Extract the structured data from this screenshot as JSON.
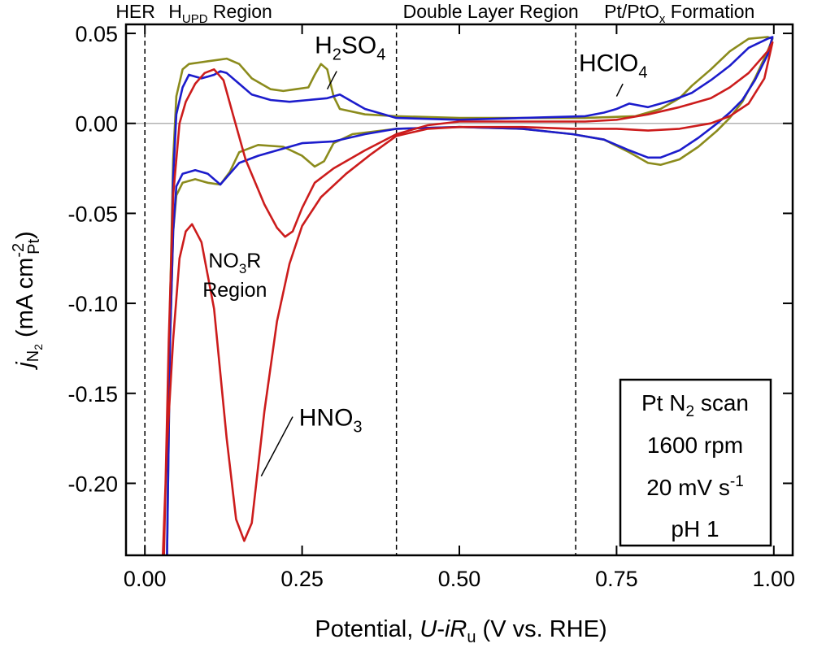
{
  "chart_data": {
    "type": "line",
    "xlabel": {
      "pre": "Potential, ",
      "U": "U",
      "dash": "-",
      "iR": "iR",
      "sub": "u",
      "post": " (V vs. RHE)"
    },
    "ylabel": {
      "j": "j",
      "sub": "N",
      "subsub": "2",
      "mid": " (mA cm",
      "sup": "-2",
      "sub2": "Pt",
      "post": ")"
    },
    "xlim": [
      -0.03,
      1.03
    ],
    "ylim": [
      -0.24,
      0.055
    ],
    "x_ticks": [
      {
        "v": 0.0,
        "label": "0.00"
      },
      {
        "v": 0.25,
        "label": "0.25"
      },
      {
        "v": 0.5,
        "label": "0.50"
      },
      {
        "v": 0.75,
        "label": "0.75"
      },
      {
        "v": 1.0,
        "label": "1.00"
      }
    ],
    "y_ticks": [
      {
        "v": 0.05,
        "label": "0.05"
      },
      {
        "v": 0.0,
        "label": "0.00"
      },
      {
        "v": -0.05,
        "label": "-0.05"
      },
      {
        "v": -0.1,
        "label": "-0.10"
      },
      {
        "v": -0.15,
        "label": "-0.15"
      },
      {
        "v": -0.2,
        "label": "-0.20"
      }
    ],
    "zero_line": 0.0,
    "region_dividers": [
      0.0,
      0.4,
      0.685
    ],
    "region_labels": [
      {
        "text": "HER",
        "x": -0.015
      },
      {
        "main": "H",
        "sub": "UPD",
        "rest": " Region",
        "x": 0.12
      },
      {
        "text": "Double Layer Region",
        "x": 0.55
      },
      {
        "main": "Pt/PtO",
        "sub": "x",
        "rest": " Formation",
        "x": 0.85
      }
    ],
    "series": [
      {
        "name": "H2SO4",
        "label_main": "H",
        "label_sub": "2",
        "label_mid": "SO",
        "label_sub2": "4",
        "color": "#8b8b1c",
        "label_pos": [
          0.27,
          0.039
        ],
        "leader": [
          [
            0.305,
            0.029
          ],
          [
            0.29,
            0.019
          ]
        ],
        "points": [
          [
            0.035,
            -0.245
          ],
          [
            0.04,
            -0.12
          ],
          [
            0.045,
            -0.06
          ],
          [
            0.05,
            -0.04
          ],
          [
            0.06,
            -0.033
          ],
          [
            0.08,
            -0.031
          ],
          [
            0.1,
            -0.033
          ],
          [
            0.12,
            -0.034
          ],
          [
            0.135,
            -0.027
          ],
          [
            0.15,
            -0.016
          ],
          [
            0.18,
            -0.012
          ],
          [
            0.22,
            -0.013
          ],
          [
            0.25,
            -0.018
          ],
          [
            0.27,
            -0.024
          ],
          [
            0.285,
            -0.021
          ],
          [
            0.3,
            -0.011
          ],
          [
            0.33,
            -0.006
          ],
          [
            0.4,
            -0.003
          ],
          [
            0.5,
            -0.002
          ],
          [
            0.6,
            -0.003
          ],
          [
            0.68,
            -0.006
          ],
          [
            0.73,
            -0.009
          ],
          [
            0.77,
            -0.016
          ],
          [
            0.8,
            -0.022
          ],
          [
            0.82,
            -0.023
          ],
          [
            0.85,
            -0.02
          ],
          [
            0.88,
            -0.013
          ],
          [
            0.91,
            -0.004
          ],
          [
            0.93,
            0.003
          ],
          [
            0.95,
            0.012
          ],
          [
            0.97,
            0.025
          ],
          [
            0.99,
            0.04
          ],
          [
            0.998,
            0.047
          ],
          [
            0.99,
            0.048
          ],
          [
            0.96,
            0.047
          ],
          [
            0.93,
            0.04
          ],
          [
            0.9,
            0.03
          ],
          [
            0.87,
            0.021
          ],
          [
            0.85,
            0.014
          ],
          [
            0.82,
            0.008
          ],
          [
            0.78,
            0.004
          ],
          [
            0.7,
            0.003
          ],
          [
            0.6,
            0.003
          ],
          [
            0.5,
            0.003
          ],
          [
            0.4,
            0.004
          ],
          [
            0.35,
            0.005
          ],
          [
            0.31,
            0.008
          ],
          [
            0.3,
            0.015
          ],
          [
            0.29,
            0.03
          ],
          [
            0.28,
            0.033
          ],
          [
            0.27,
            0.027
          ],
          [
            0.26,
            0.02
          ],
          [
            0.24,
            0.019
          ],
          [
            0.22,
            0.018
          ],
          [
            0.2,
            0.019
          ],
          [
            0.17,
            0.025
          ],
          [
            0.15,
            0.033
          ],
          [
            0.13,
            0.036
          ],
          [
            0.11,
            0.035
          ],
          [
            0.09,
            0.034
          ],
          [
            0.07,
            0.033
          ],
          [
            0.06,
            0.03
          ],
          [
            0.05,
            0.015
          ],
          [
            0.045,
            -0.02
          ],
          [
            0.04,
            -0.1
          ],
          [
            0.035,
            -0.245
          ]
        ]
      },
      {
        "name": "HClO4",
        "label_main": "HClO",
        "label_sub": "4",
        "color": "#1c1ccc",
        "label_pos": [
          0.69,
          0.029
        ],
        "leader": [
          [
            0.76,
            0.022
          ],
          [
            0.75,
            0.015
          ]
        ],
        "points": [
          [
            0.035,
            -0.245
          ],
          [
            0.04,
            -0.12
          ],
          [
            0.045,
            -0.06
          ],
          [
            0.05,
            -0.035
          ],
          [
            0.06,
            -0.028
          ],
          [
            0.08,
            -0.026
          ],
          [
            0.1,
            -0.028
          ],
          [
            0.12,
            -0.034
          ],
          [
            0.135,
            -0.028
          ],
          [
            0.15,
            -0.022
          ],
          [
            0.18,
            -0.018
          ],
          [
            0.22,
            -0.014
          ],
          [
            0.25,
            -0.011
          ],
          [
            0.3,
            -0.01
          ],
          [
            0.35,
            -0.006
          ],
          [
            0.4,
            -0.003
          ],
          [
            0.5,
            -0.002
          ],
          [
            0.6,
            -0.003
          ],
          [
            0.68,
            -0.006
          ],
          [
            0.73,
            -0.009
          ],
          [
            0.77,
            -0.015
          ],
          [
            0.8,
            -0.019
          ],
          [
            0.82,
            -0.019
          ],
          [
            0.85,
            -0.015
          ],
          [
            0.88,
            -0.008
          ],
          [
            0.91,
            0.0
          ],
          [
            0.93,
            0.006
          ],
          [
            0.95,
            0.013
          ],
          [
            0.97,
            0.024
          ],
          [
            0.99,
            0.038
          ],
          [
            0.998,
            0.048
          ],
          [
            0.99,
            0.047
          ],
          [
            0.96,
            0.042
          ],
          [
            0.93,
            0.032
          ],
          [
            0.9,
            0.024
          ],
          [
            0.87,
            0.017
          ],
          [
            0.84,
            0.013
          ],
          [
            0.8,
            0.009
          ],
          [
            0.77,
            0.011
          ],
          [
            0.75,
            0.008
          ],
          [
            0.73,
            0.006
          ],
          [
            0.7,
            0.004
          ],
          [
            0.6,
            0.003
          ],
          [
            0.5,
            0.002
          ],
          [
            0.4,
            0.003
          ],
          [
            0.35,
            0.008
          ],
          [
            0.32,
            0.014
          ],
          [
            0.31,
            0.016
          ],
          [
            0.29,
            0.014
          ],
          [
            0.26,
            0.013
          ],
          [
            0.23,
            0.012
          ],
          [
            0.2,
            0.013
          ],
          [
            0.17,
            0.016
          ],
          [
            0.15,
            0.022
          ],
          [
            0.13,
            0.028
          ],
          [
            0.12,
            0.029
          ],
          [
            0.11,
            0.027
          ],
          [
            0.1,
            0.026
          ],
          [
            0.09,
            0.025
          ],
          [
            0.07,
            0.027
          ],
          [
            0.06,
            0.02
          ],
          [
            0.05,
            0.005
          ],
          [
            0.045,
            -0.03
          ],
          [
            0.04,
            -0.11
          ],
          [
            0.035,
            -0.245
          ]
        ]
      },
      {
        "name": "HNO3",
        "label_main": "HNO",
        "label_sub": "3",
        "color": "#cc1c1c",
        "label_pos": [
          0.245,
          -0.168
        ],
        "leader": [
          [
            0.235,
            -0.163
          ],
          [
            0.185,
            -0.196
          ]
        ],
        "points": [
          [
            0.028,
            -0.245
          ],
          [
            0.035,
            -0.18
          ],
          [
            0.045,
            -0.12
          ],
          [
            0.055,
            -0.075
          ],
          [
            0.065,
            -0.06
          ],
          [
            0.075,
            -0.056
          ],
          [
            0.09,
            -0.066
          ],
          [
            0.11,
            -0.103
          ],
          [
            0.13,
            -0.175
          ],
          [
            0.145,
            -0.22
          ],
          [
            0.158,
            -0.232
          ],
          [
            0.17,
            -0.222
          ],
          [
            0.19,
            -0.16
          ],
          [
            0.21,
            -0.11
          ],
          [
            0.23,
            -0.078
          ],
          [
            0.25,
            -0.057
          ],
          [
            0.28,
            -0.041
          ],
          [
            0.32,
            -0.028
          ],
          [
            0.36,
            -0.017
          ],
          [
            0.4,
            -0.007
          ],
          [
            0.45,
            -0.003
          ],
          [
            0.5,
            -0.002
          ],
          [
            0.6,
            -0.002
          ],
          [
            0.68,
            -0.003
          ],
          [
            0.75,
            -0.003
          ],
          [
            0.8,
            -0.004
          ],
          [
            0.85,
            -0.003
          ],
          [
            0.9,
            0.0
          ],
          [
            0.93,
            0.004
          ],
          [
            0.96,
            0.011
          ],
          [
            0.985,
            0.025
          ],
          [
            0.998,
            0.045
          ],
          [
            0.99,
            0.04
          ],
          [
            0.96,
            0.028
          ],
          [
            0.93,
            0.02
          ],
          [
            0.9,
            0.014
          ],
          [
            0.85,
            0.009
          ],
          [
            0.8,
            0.005
          ],
          [
            0.75,
            0.002
          ],
          [
            0.7,
            0.001
          ],
          [
            0.6,
            0.001
          ],
          [
            0.5,
            0.001
          ],
          [
            0.45,
            -0.001
          ],
          [
            0.4,
            -0.006
          ],
          [
            0.35,
            -0.015
          ],
          [
            0.3,
            -0.025
          ],
          [
            0.27,
            -0.033
          ],
          [
            0.25,
            -0.047
          ],
          [
            0.235,
            -0.06
          ],
          [
            0.223,
            -0.063
          ],
          [
            0.21,
            -0.058
          ],
          [
            0.19,
            -0.045
          ],
          [
            0.16,
            -0.02
          ],
          [
            0.14,
            0.005
          ],
          [
            0.125,
            0.024
          ],
          [
            0.11,
            0.03
          ],
          [
            0.095,
            0.028
          ],
          [
            0.08,
            0.022
          ],
          [
            0.065,
            0.012
          ],
          [
            0.055,
            0.0
          ],
          [
            0.045,
            -0.04
          ],
          [
            0.038,
            -0.12
          ],
          [
            0.03,
            -0.245
          ]
        ]
      }
    ],
    "annotation": {
      "line1_main": "NO",
      "line1_sub": "3",
      "line1_rest": "R",
      "line2": "Region",
      "pos": [
        0.143,
        -0.08
      ],
      "color": "#cc1c1c"
    },
    "info_box": {
      "line1_main": "Pt N",
      "line1_sub": "2",
      "line1_rest": " scan",
      "line2": "1600 rpm",
      "line3_main": "20 mV s",
      "line3_sup": "-1",
      "line4": "pH 1"
    }
  }
}
